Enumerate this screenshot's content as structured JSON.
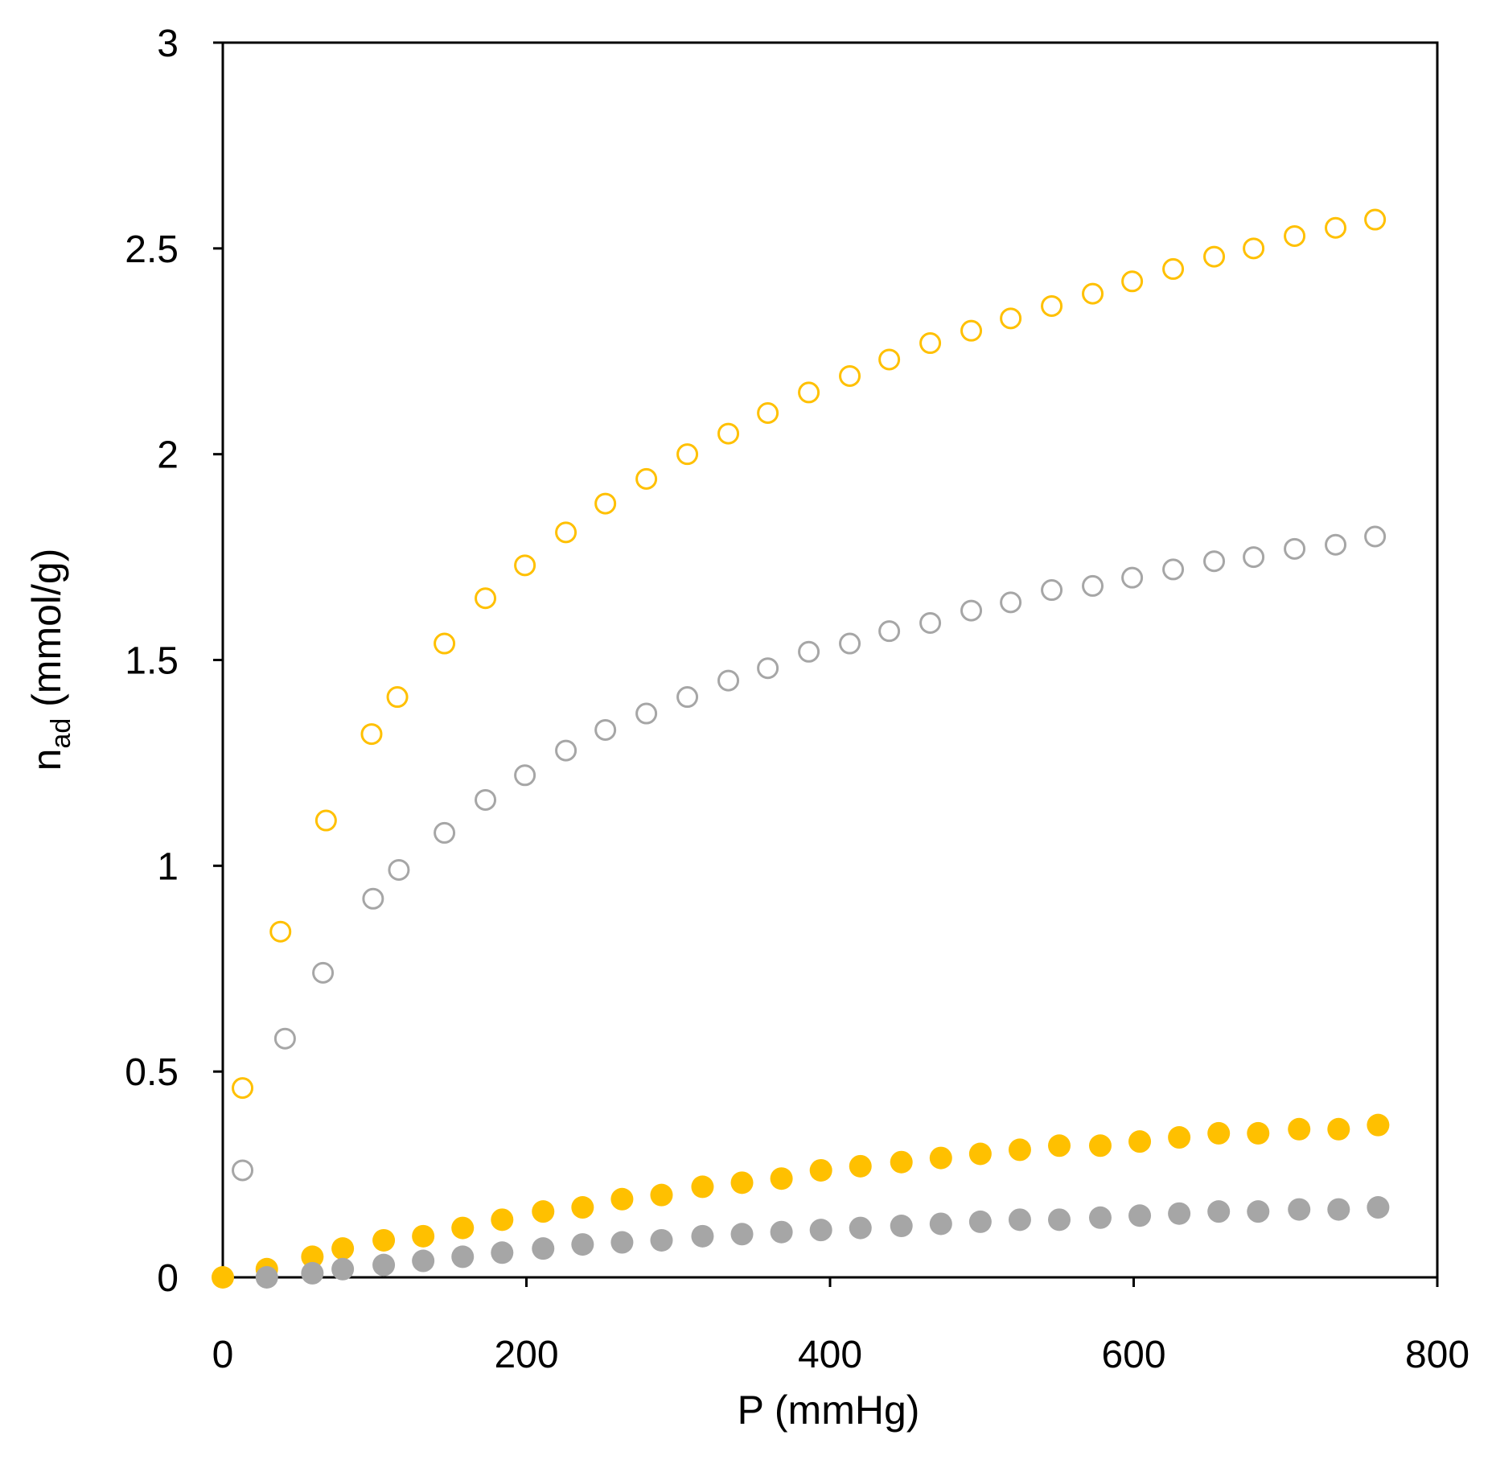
{
  "chart_data": {
    "type": "scatter",
    "xlabel": "P (mmHg)",
    "ylabel": {
      "main": "n",
      "sub": "ad",
      "rest": " (mmol/g)"
    },
    "xlim": [
      0,
      800
    ],
    "ylim": [
      0,
      3
    ],
    "x_ticks": [
      0,
      200,
      400,
      600,
      800
    ],
    "y_ticks": [
      0,
      0.5,
      1,
      1.5,
      2,
      2.5,
      3
    ],
    "x_tick_labels": [
      "0",
      "200",
      "400",
      "600",
      "800"
    ],
    "y_tick_labels": [
      "0",
      "0.5",
      "1",
      "1.5",
      "2",
      "2.5",
      "3"
    ],
    "grid": false,
    "legend": "none",
    "series": [
      {
        "style": "open",
        "color": "#FFC000",
        "x": [
          13,
          38,
          68,
          98,
          115,
          146,
          173,
          199,
          226,
          252,
          279,
          306,
          333,
          359,
          386,
          413,
          439,
          466,
          493,
          519,
          546,
          573,
          599,
          626,
          653,
          679,
          706,
          733,
          759
        ],
        "y": [
          0.46,
          0.84,
          1.11,
          1.32,
          1.41,
          1.54,
          1.65,
          1.73,
          1.81,
          1.88,
          1.94,
          2.0,
          2.05,
          2.1,
          2.15,
          2.19,
          2.23,
          2.27,
          2.3,
          2.33,
          2.36,
          2.39,
          2.42,
          2.45,
          2.48,
          2.5,
          2.53,
          2.55,
          2.57
        ]
      },
      {
        "style": "open",
        "color": "#A6A6A6",
        "x": [
          13,
          41,
          66,
          99,
          116,
          146,
          173,
          199,
          226,
          252,
          279,
          306,
          333,
          359,
          386,
          413,
          439,
          466,
          493,
          519,
          546,
          573,
          599,
          626,
          653,
          679,
          706,
          733,
          759
        ],
        "y": [
          0.26,
          0.58,
          0.74,
          0.92,
          0.99,
          1.08,
          1.16,
          1.22,
          1.28,
          1.33,
          1.37,
          1.41,
          1.45,
          1.48,
          1.52,
          1.54,
          1.57,
          1.59,
          1.62,
          1.64,
          1.67,
          1.68,
          1.7,
          1.72,
          1.74,
          1.75,
          1.77,
          1.78,
          1.8
        ]
      },
      {
        "style": "filled",
        "color": "#FFC000",
        "x": [
          0,
          29,
          59,
          79,
          106,
          132,
          158,
          184,
          211,
          237,
          263,
          289,
          316,
          342,
          368,
          394,
          420,
          447,
          473,
          499,
          525,
          551,
          578,
          604,
          630,
          656,
          682,
          709,
          735,
          761
        ],
        "y": [
          0.0,
          0.02,
          0.05,
          0.07,
          0.09,
          0.1,
          0.12,
          0.14,
          0.16,
          0.17,
          0.19,
          0.2,
          0.22,
          0.23,
          0.24,
          0.26,
          0.27,
          0.28,
          0.29,
          0.3,
          0.31,
          0.32,
          0.32,
          0.33,
          0.34,
          0.35,
          0.35,
          0.36,
          0.36,
          0.37
        ]
      },
      {
        "style": "filled",
        "color": "#A6A6A6",
        "x": [
          29,
          59,
          79,
          106,
          132,
          158,
          184,
          211,
          237,
          263,
          289,
          316,
          342,
          368,
          394,
          420,
          447,
          473,
          499,
          525,
          551,
          578,
          604,
          630,
          656,
          682,
          709,
          735,
          761
        ],
        "y": [
          0.0,
          0.01,
          0.02,
          0.03,
          0.04,
          0.05,
          0.06,
          0.07,
          0.08,
          0.085,
          0.09,
          0.1,
          0.105,
          0.11,
          0.115,
          0.12,
          0.125,
          0.13,
          0.135,
          0.14,
          0.14,
          0.145,
          0.15,
          0.155,
          0.16,
          0.16,
          0.165,
          0.165,
          0.17
        ]
      }
    ]
  }
}
